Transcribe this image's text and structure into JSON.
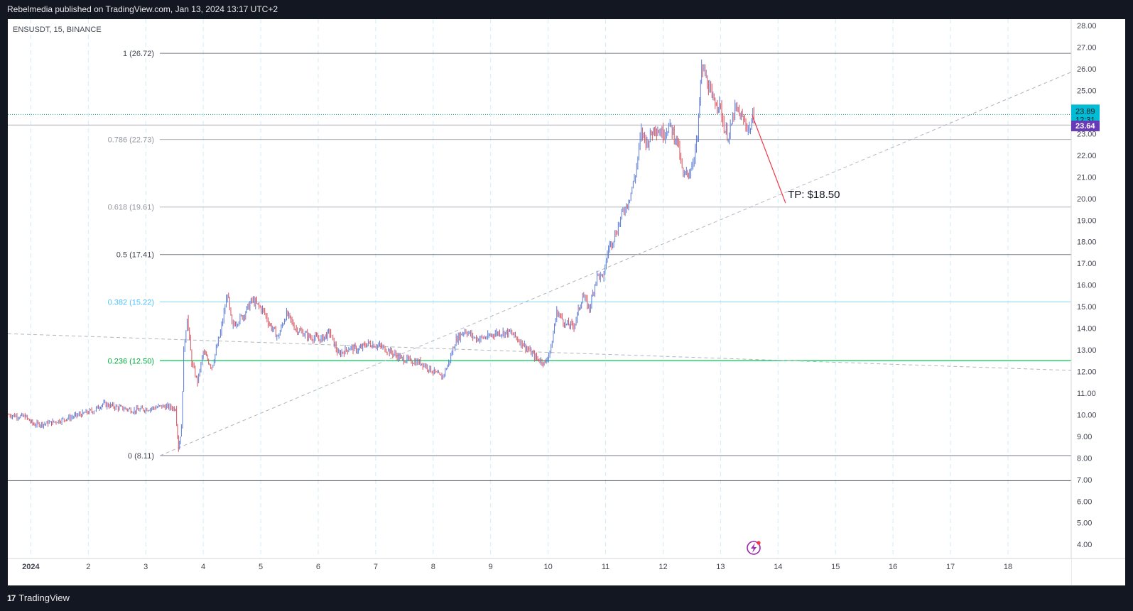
{
  "header": {
    "published_text": "Rebelmedia published on TradingView.com, Jan 13, 2024 13:17 UTC+2"
  },
  "footer": {
    "brand_label": "TradingView",
    "brand_icon": "tradingview-logo-icon"
  },
  "chart_data": {
    "type": "candlestick",
    "symbol_label": "ENSUSDT, 15, BINANCE",
    "y_axis": {
      "ticks": [
        4,
        5,
        6,
        7,
        8,
        9,
        10,
        11,
        12,
        13,
        14,
        15,
        16,
        17,
        18,
        19,
        20,
        21,
        22,
        23,
        24,
        25,
        26,
        27,
        28
      ],
      "ylim": [
        3.35,
        28.3
      ]
    },
    "x_axis": {
      "tick_labels": [
        "2024",
        "2",
        "3",
        "4",
        "5",
        "6",
        "7",
        "8",
        "9",
        "10",
        "11",
        "12",
        "13",
        "14",
        "15",
        "16",
        "17",
        "18"
      ],
      "tick_days": [
        1,
        2,
        3,
        4,
        5,
        6,
        7,
        8,
        9,
        10,
        11,
        12,
        13,
        14,
        15,
        16,
        17,
        18
      ],
      "xlim": [
        0.6,
        19.1
      ]
    },
    "current_price": {
      "value": 23.89,
      "countdown": "12:31"
    },
    "crosshair_price": 23.64,
    "fib_levels": [
      {
        "ratio_label": "1 (26.72)",
        "value": 26.72,
        "color": "#787b86"
      },
      {
        "ratio_label": "0.786 (22.73)",
        "value": 22.73,
        "color": "#b2b5be"
      },
      {
        "ratio_label": "0.618 (19.61)",
        "value": 19.61,
        "color": "#b2b5be"
      },
      {
        "ratio_label": "0.5 (17.41)",
        "value": 17.41,
        "color": "#787b86"
      },
      {
        "ratio_label": "0.382 (15.22)",
        "value": 15.22,
        "color": "#81d4fa"
      },
      {
        "ratio_label": "0.236 (12.50)",
        "value": 12.5,
        "color": "#00c853"
      },
      {
        "ratio_label": "0 (8.11)",
        "value": 8.11,
        "color": "#787b86"
      }
    ],
    "extra_lines": [
      23.4,
      6.95
    ],
    "trendlines": [
      {
        "x1": 3.25,
        "y1": 8.11,
        "x2": 19.1,
        "y2": 25.85
      },
      {
        "x1": 0.6,
        "y1": 13.75,
        "x2": 19.1,
        "y2": 12.05
      }
    ],
    "projection": {
      "x1": 13.55,
      "y1": 23.85,
      "x2": 14.13,
      "y2": 19.8
    },
    "annotation": {
      "text": "TP: $18.50",
      "x": 14.17,
      "y": 20.02
    },
    "price_path": [
      [
        0.6,
        10.0
      ],
      [
        0.9,
        9.9
      ],
      [
        1.05,
        9.55
      ],
      [
        1.3,
        9.6
      ],
      [
        1.6,
        9.8
      ],
      [
        1.9,
        10.05
      ],
      [
        2.1,
        10.2
      ],
      [
        2.25,
        10.5
      ],
      [
        2.5,
        10.35
      ],
      [
        2.8,
        10.2
      ],
      [
        3.1,
        10.3
      ],
      [
        3.3,
        10.4
      ],
      [
        3.52,
        10.3
      ],
      [
        3.57,
        8.4
      ],
      [
        3.62,
        9.4
      ],
      [
        3.66,
        13.0
      ],
      [
        3.72,
        14.5
      ],
      [
        3.8,
        12.4
      ],
      [
        3.9,
        11.5
      ],
      [
        4.0,
        12.9
      ],
      [
        4.15,
        12.2
      ],
      [
        4.3,
        13.8
      ],
      [
        4.42,
        15.6
      ],
      [
        4.5,
        14.1
      ],
      [
        4.7,
        14.6
      ],
      [
        4.85,
        15.3
      ],
      [
        5.05,
        14.8
      ],
      [
        5.15,
        14.2
      ],
      [
        5.3,
        13.6
      ],
      [
        5.45,
        14.7
      ],
      [
        5.6,
        14.0
      ],
      [
        5.85,
        13.6
      ],
      [
        6.05,
        13.5
      ],
      [
        6.2,
        13.8
      ],
      [
        6.35,
        12.8
      ],
      [
        6.55,
        13.1
      ],
      [
        6.7,
        13.0
      ],
      [
        6.85,
        13.3
      ],
      [
        7.05,
        13.2
      ],
      [
        7.2,
        13.0
      ],
      [
        7.45,
        12.6
      ],
      [
        7.6,
        12.5
      ],
      [
        7.8,
        12.4
      ],
      [
        8.0,
        12.0
      ],
      [
        8.15,
        11.7
      ],
      [
        8.27,
        12.4
      ],
      [
        8.4,
        13.5
      ],
      [
        8.55,
        13.9
      ],
      [
        8.75,
        13.5
      ],
      [
        8.95,
        13.6
      ],
      [
        9.1,
        13.8
      ],
      [
        9.35,
        13.8
      ],
      [
        9.55,
        13.3
      ],
      [
        9.8,
        12.6
      ],
      [
        9.95,
        12.4
      ],
      [
        10.05,
        13.1
      ],
      [
        10.15,
        14.8
      ],
      [
        10.3,
        14.2
      ],
      [
        10.45,
        14.1
      ],
      [
        10.6,
        15.5
      ],
      [
        10.72,
        14.9
      ],
      [
        10.85,
        16.5
      ],
      [
        10.95,
        16.3
      ],
      [
        11.05,
        17.7
      ],
      [
        11.18,
        18.4
      ],
      [
        11.3,
        19.4
      ],
      [
        11.4,
        19.9
      ],
      [
        11.52,
        21.1
      ],
      [
        11.62,
        23.1
      ],
      [
        11.72,
        22.6
      ],
      [
        11.85,
        23.3
      ],
      [
        12.0,
        23.0
      ],
      [
        12.12,
        23.4
      ],
      [
        12.25,
        22.6
      ],
      [
        12.35,
        21.0
      ],
      [
        12.48,
        21.3
      ],
      [
        12.6,
        22.8
      ],
      [
        12.67,
        26.1
      ],
      [
        12.75,
        25.6
      ],
      [
        12.85,
        24.6
      ],
      [
        12.98,
        24.4
      ],
      [
        13.08,
        23.1
      ],
      [
        13.15,
        22.9
      ],
      [
        13.25,
        24.2
      ],
      [
        13.38,
        23.7
      ],
      [
        13.5,
        23.2
      ],
      [
        13.58,
        23.89
      ]
    ]
  }
}
